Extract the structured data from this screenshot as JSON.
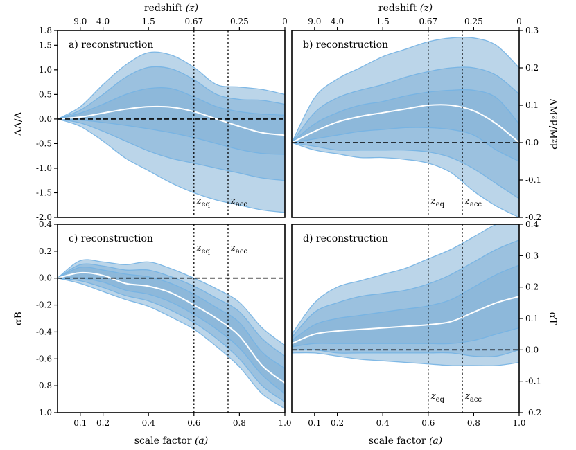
{
  "colors": {
    "fill": "#2b7bba",
    "band_line": "#74b3e3",
    "median": "#ffffff",
    "dashed": "#000000"
  },
  "redshift_label": "redshift",
  "redshift_var": "(z)",
  "scale_label": "scale factor",
  "scale_var": "(a)",
  "top_ticks": [
    "9.0",
    "4.0",
    "1.5",
    "0.67",
    "0.25",
    "0"
  ],
  "vline_labels": {
    "eq": "z",
    "eq_sub": "eq",
    "acc": "z",
    "acc_sub": "acc"
  },
  "chart_data": [
    {
      "id": "a",
      "type": "area",
      "title": "a) reconstruction",
      "ylabel": "ΔΛ/Λ",
      "ylabel_side": "left",
      "xlim": [
        0.0,
        1.0
      ],
      "ylim": [
        -2.0,
        1.8
      ],
      "yticks": [
        "1.8",
        "1.5",
        "1.0",
        "0.5",
        "0.0",
        "-0.5",
        "-1.0",
        "-1.5",
        "-2.0"
      ],
      "xticks": [
        "0.1",
        "0.2",
        "0.4",
        "0.6",
        "0.8",
        "1.0"
      ],
      "vlines": [
        0.6,
        0.75
      ],
      "vline_label_pos": "bottom",
      "zero_line": 0,
      "a": [
        0.0,
        0.1,
        0.2,
        0.3,
        0.4,
        0.5,
        0.6,
        0.7,
        0.8,
        0.9,
        1.0
      ],
      "median": [
        0.0,
        0.04,
        0.12,
        0.2,
        0.25,
        0.24,
        0.15,
        0.0,
        -0.15,
        -0.28,
        -0.33
      ],
      "bands": [
        {
          "lo": [
            0.0,
            -0.02,
            -0.07,
            -0.13,
            -0.2,
            -0.28,
            -0.38,
            -0.5,
            -0.62,
            -0.7,
            -0.72
          ],
          "hi": [
            0.0,
            0.12,
            0.3,
            0.5,
            0.62,
            0.62,
            0.45,
            0.25,
            0.15,
            0.1,
            0.08
          ]
        },
        {
          "lo": [
            0.0,
            -0.08,
            -0.25,
            -0.45,
            -0.65,
            -0.8,
            -0.9,
            -1.0,
            -1.1,
            -1.2,
            -1.25
          ],
          "hi": [
            0.0,
            0.18,
            0.5,
            0.85,
            1.05,
            1.02,
            0.8,
            0.5,
            0.4,
            0.38,
            0.3
          ]
        },
        {
          "lo": [
            0.0,
            -0.15,
            -0.45,
            -0.8,
            -1.05,
            -1.3,
            -1.5,
            -1.65,
            -1.75,
            -1.85,
            -1.9
          ],
          "hi": [
            0.0,
            0.25,
            0.7,
            1.1,
            1.35,
            1.3,
            1.05,
            0.7,
            0.65,
            0.6,
            0.5
          ]
        }
      ]
    },
    {
      "id": "b",
      "type": "area",
      "title": "b) reconstruction",
      "ylabel": "ΔM²P/M²P",
      "ylabel_side": "right",
      "xlim": [
        0.0,
        1.0
      ],
      "ylim": [
        -0.2,
        0.3
      ],
      "yticks": [
        "0.3",
        "0.2",
        "0.1",
        "0.0",
        "-0.1",
        "-0.2"
      ],
      "xticks": [
        "0.1",
        "0.2",
        "0.4",
        "0.6",
        "0.8",
        "1.0"
      ],
      "vlines": [
        0.6,
        0.75
      ],
      "vline_label_pos": "bottom",
      "zero_line": 0,
      "a": [
        0.0,
        0.1,
        0.2,
        0.3,
        0.4,
        0.5,
        0.6,
        0.7,
        0.8,
        0.9,
        1.0
      ],
      "median": [
        0.0,
        0.03,
        0.055,
        0.07,
        0.08,
        0.09,
        0.1,
        0.1,
        0.085,
        0.05,
        0.0
      ],
      "bands": [
        {
          "lo": [
            0.0,
            0.01,
            0.02,
            0.03,
            0.035,
            0.04,
            0.04,
            0.035,
            0.02,
            -0.02,
            -0.05
          ],
          "hi": [
            0.0,
            0.05,
            0.08,
            0.1,
            0.11,
            0.125,
            0.135,
            0.14,
            0.14,
            0.12,
            0.05
          ]
        },
        {
          "lo": [
            0.0,
            -0.01,
            -0.02,
            -0.02,
            -0.02,
            -0.02,
            -0.025,
            -0.04,
            -0.07,
            -0.11,
            -0.15
          ],
          "hi": [
            0.0,
            0.08,
            0.12,
            0.14,
            0.155,
            0.175,
            0.19,
            0.2,
            0.2,
            0.18,
            0.13
          ]
        },
        {
          "lo": [
            0.0,
            -0.02,
            -0.03,
            -0.04,
            -0.04,
            -0.045,
            -0.055,
            -0.08,
            -0.13,
            -0.17,
            -0.2
          ],
          "hi": [
            0.0,
            0.12,
            0.17,
            0.2,
            0.23,
            0.25,
            0.27,
            0.28,
            0.28,
            0.26,
            0.2
          ]
        }
      ]
    },
    {
      "id": "c",
      "type": "area",
      "title": "c) reconstruction",
      "ylabel": "αB",
      "ylabel_side": "left",
      "xlim": [
        0.0,
        1.0
      ],
      "ylim": [
        -1.0,
        0.4
      ],
      "yticks": [
        "0.4",
        "0.2",
        "0.0",
        "-0.2",
        "-0.4",
        "-0.6",
        "-0.8",
        "-1.0"
      ],
      "xticks": [
        "0.1",
        "0.2",
        "0.4",
        "0.6",
        "0.8",
        "1.0"
      ],
      "vlines": [
        0.6,
        0.75
      ],
      "vline_label_pos": "top",
      "zero_line": 0,
      "a": [
        0.0,
        0.1,
        0.2,
        0.3,
        0.4,
        0.5,
        0.6,
        0.7,
        0.8,
        0.9,
        1.0
      ],
      "median": [
        0.0,
        0.04,
        0.02,
        -0.04,
        -0.06,
        -0.11,
        -0.2,
        -0.3,
        -0.43,
        -0.65,
        -0.78
      ],
      "bands": [
        {
          "lo": [
            0.0,
            0.0,
            -0.03,
            -0.09,
            -0.12,
            -0.18,
            -0.27,
            -0.38,
            -0.52,
            -0.72,
            -0.86
          ],
          "hi": [
            0.0,
            0.08,
            0.06,
            0.03,
            0.01,
            -0.04,
            -0.12,
            -0.22,
            -0.33,
            -0.55,
            -0.67
          ]
        },
        {
          "lo": [
            0.0,
            -0.02,
            -0.07,
            -0.13,
            -0.17,
            -0.24,
            -0.33,
            -0.45,
            -0.6,
            -0.8,
            -0.92
          ],
          "hi": [
            0.0,
            0.1,
            0.09,
            0.06,
            0.06,
            0.01,
            -0.06,
            -0.15,
            -0.25,
            -0.45,
            -0.58
          ]
        },
        {
          "lo": [
            0.0,
            -0.04,
            -0.1,
            -0.16,
            -0.21,
            -0.29,
            -0.38,
            -0.51,
            -0.66,
            -0.86,
            -0.97
          ],
          "hi": [
            0.0,
            0.13,
            0.12,
            0.1,
            0.12,
            0.07,
            0.0,
            -0.08,
            -0.18,
            -0.37,
            -0.5
          ]
        }
      ]
    },
    {
      "id": "d",
      "type": "area",
      "title": "d) reconstruction",
      "ylabel": "αT",
      "ylabel_side": "right",
      "xlim": [
        0.0,
        1.0
      ],
      "ylim": [
        -0.2,
        0.4
      ],
      "yticks": [
        "0.4",
        "0.3",
        "0.2",
        "0.1",
        "0.0",
        "-0.1",
        "-0.2"
      ],
      "xticks": [
        "0.1",
        "0.2",
        "0.4",
        "0.6",
        "0.8",
        "1.0"
      ],
      "vlines": [
        0.6,
        0.75
      ],
      "vline_label_pos": "bottom",
      "zero_line": 0,
      "a": [
        0.0,
        0.1,
        0.2,
        0.3,
        0.4,
        0.5,
        0.6,
        0.7,
        0.8,
        0.9,
        1.0
      ],
      "median": [
        0.02,
        0.05,
        0.06,
        0.065,
        0.07,
        0.075,
        0.08,
        0.09,
        0.12,
        0.15,
        0.17
      ],
      "bands": [
        {
          "lo": [
            0.01,
            0.02,
            0.02,
            0.02,
            0.02,
            0.02,
            0.02,
            0.02,
            0.03,
            0.05,
            0.07
          ],
          "hi": [
            0.03,
            0.08,
            0.1,
            0.11,
            0.12,
            0.13,
            0.14,
            0.16,
            0.2,
            0.24,
            0.27
          ]
        },
        {
          "lo": [
            0.0,
            0.0,
            -0.01,
            -0.01,
            -0.01,
            -0.01,
            -0.01,
            -0.01,
            -0.02,
            -0.02,
            0.0
          ],
          "hi": [
            0.04,
            0.12,
            0.15,
            0.17,
            0.18,
            0.19,
            0.21,
            0.24,
            0.28,
            0.32,
            0.35
          ]
        },
        {
          "lo": [
            -0.01,
            -0.01,
            -0.02,
            -0.03,
            -0.035,
            -0.04,
            -0.045,
            -0.05,
            -0.05,
            -0.05,
            -0.04
          ],
          "hi": [
            0.05,
            0.15,
            0.2,
            0.22,
            0.24,
            0.26,
            0.29,
            0.32,
            0.36,
            0.4,
            0.42
          ]
        }
      ]
    }
  ]
}
